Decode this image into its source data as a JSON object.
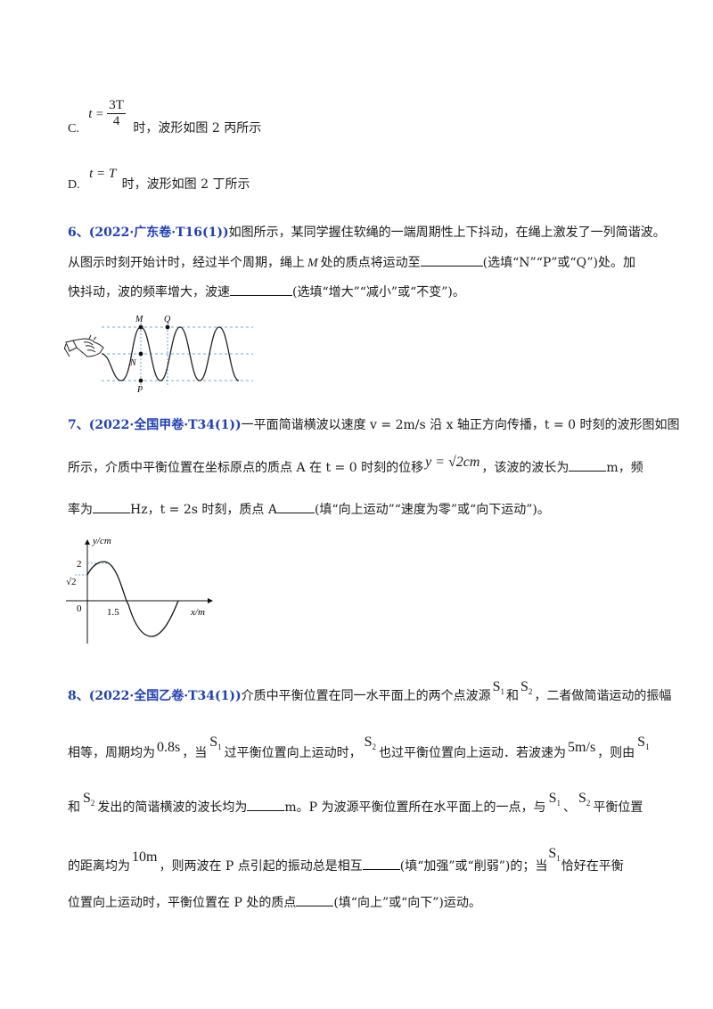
{
  "option_c": {
    "label": "C.",
    "t_var": "t",
    "eq": "=",
    "frac_num": "3T",
    "frac_den": "4",
    "text": "时，波形如图 2 丙所示"
  },
  "option_d": {
    "label": "D.",
    "eq": "t = T",
    "text": "时，波形如图 2 丁所示"
  },
  "q6": {
    "tag": "6、(2022·广东卷·T16(1))",
    "line1": "如图所示，某同学握住软绳的一端周期性上下抖动，在绳上激发了一列简谐波。",
    "line2a": "从图示时刻开始计时，经过半个周期，绳上",
    "m_var": "M",
    "line2b": "处的质点将运动至",
    "line2c": "(选填“N”“P”或“Q”)处。加",
    "line3a": "快抖动，波的频率增大，波速",
    "line3b": "(选填“增大”“减小”或“不变”)。",
    "figure": {
      "label_m": "M",
      "label_q": "Q",
      "label_n": "N",
      "label_p": "P"
    }
  },
  "q7": {
    "tag": "7、(2022·全国甲卷·T34(1))",
    "line1": "一平面简谐横波以速度 v = 2m/s 沿 x 轴正方向传播，t = 0 时刻的波形图如图",
    "line2a": "所示，介质中平衡位置在坐标原点的质点 A 在 t = 0 时刻的位移",
    "disp_formula": "y = √2cm",
    "line2b": "，该波的波长为",
    "line2c": "m，频",
    "line3a": "率为",
    "line3b": "Hz，t = 2s 时刻，质点 A",
    "line3c": "(填“向上运动”“速度为零”或“向下运动”)。",
    "chart": {
      "ylabel": "y/cm",
      "xlabel": "x/m",
      "origin": "0",
      "tick_y_top": "2",
      "tick_y_mid": "√2",
      "tick_x": "1.5"
    }
  },
  "q8": {
    "tag": "8、(2022·全国乙卷·T34(1))",
    "l1a": "介质中平衡位置在同一水平面上的两个点波源",
    "s1": "S",
    "sub1": "1",
    "and": "和",
    "s2": "S",
    "sub2": "2",
    "l1b": "，二者做简谐运动的振幅",
    "l2a": "相等，周期均为",
    "period": "0.8s",
    "l2b": "，当",
    "l2c": "过平衡位置向上运动时，",
    "l2d": "也过平衡位置向上运动．若波速为",
    "speed": "5m/s",
    "l2e": "，则由",
    "l3a": "和",
    "l3b": "发出的简谐横波的波长均为",
    "l3c": "m。P 为波源平衡位置所在水平面上的一点，与",
    "l3d": "、",
    "l3e": "平衡位置",
    "l4a": "的距离均为",
    "dist": "10m",
    "l4b": "，则两波在 P 点引起的振动总是相互",
    "l4c": "(填“加强”或“削弱”)的；当",
    "l4d": "恰好在平衡",
    "l5a": "位置向上运动时，平衡位置在 P 处的质点",
    "l5b": "(填“向上”或“向下”)运动。"
  }
}
